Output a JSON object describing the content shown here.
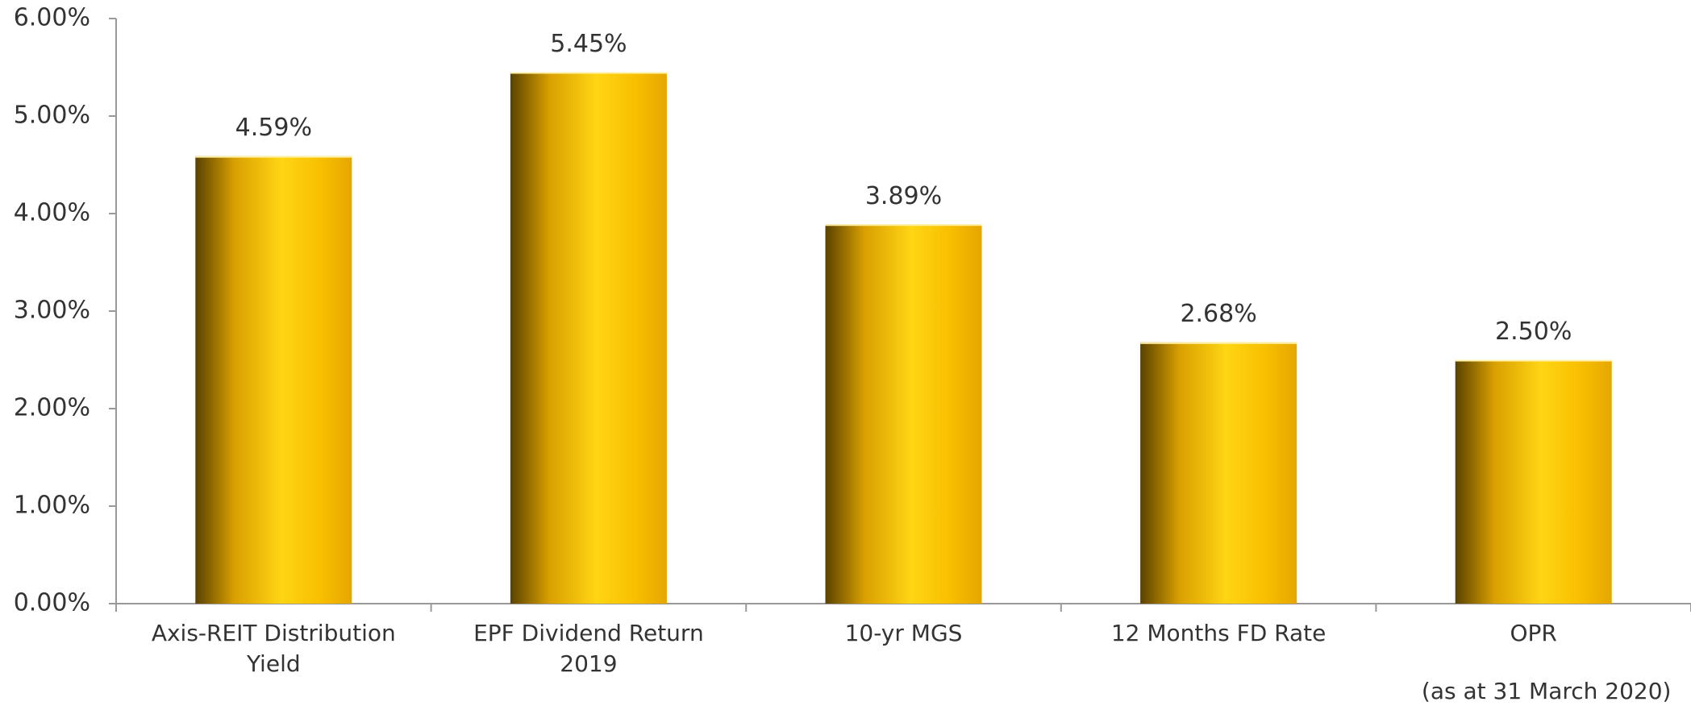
{
  "chart_data": {
    "type": "bar",
    "categories": [
      "Axis-REIT Distribution Yield",
      "EPF Dividend Return 2019",
      "10-yr MGS",
      "12 Months FD Rate",
      "OPR"
    ],
    "values": [
      4.59,
      5.45,
      3.89,
      2.68,
      2.5
    ],
    "value_labels": [
      "4.59%",
      "5.45%",
      "3.89%",
      "2.68%",
      "2.50%"
    ],
    "annotation": "(as at 31 March 2020)",
    "ylim": [
      0,
      6
    ],
    "yticks": [
      {
        "value": 0,
        "label": "0.00%"
      },
      {
        "value": 1,
        "label": "1.00%"
      },
      {
        "value": 2,
        "label": "2.00%"
      },
      {
        "value": 3,
        "label": "3.00%"
      },
      {
        "value": 4,
        "label": "4.00%"
      },
      {
        "value": 5,
        "label": "5.00%"
      },
      {
        "value": 6,
        "label": "6.00%"
      }
    ],
    "color": "#f7c300",
    "grid": false
  }
}
